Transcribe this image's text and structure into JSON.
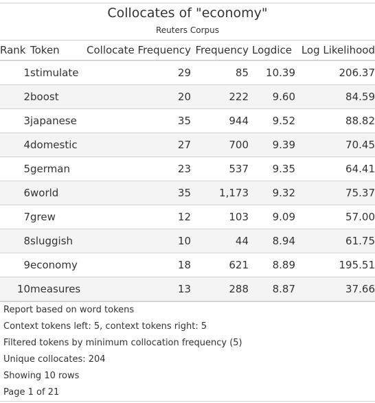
{
  "title": "Collocates of \"economy\"",
  "subtitle": "Reuters Corpus",
  "columns": [
    "Rank",
    "Token",
    "Collocate Frequency",
    "Frequency",
    "Logdice",
    "Log Likelihood"
  ],
  "rows": [
    {
      "rank": "1",
      "token": "stimulate",
      "collocate_frequency": "29",
      "frequency": "85",
      "logdice": "10.39",
      "log_likelihood": "206.37"
    },
    {
      "rank": "2",
      "token": "boost",
      "collocate_frequency": "20",
      "frequency": "222",
      "logdice": "9.60",
      "log_likelihood": "84.59"
    },
    {
      "rank": "3",
      "token": "japanese",
      "collocate_frequency": "35",
      "frequency": "944",
      "logdice": "9.52",
      "log_likelihood": "88.82"
    },
    {
      "rank": "4",
      "token": "domestic",
      "collocate_frequency": "27",
      "frequency": "700",
      "logdice": "9.39",
      "log_likelihood": "70.45"
    },
    {
      "rank": "5",
      "token": "german",
      "collocate_frequency": "23",
      "frequency": "537",
      "logdice": "9.35",
      "log_likelihood": "64.41"
    },
    {
      "rank": "6",
      "token": "world",
      "collocate_frequency": "35",
      "frequency": "1,173",
      "logdice": "9.32",
      "log_likelihood": "75.37"
    },
    {
      "rank": "7",
      "token": "grew",
      "collocate_frequency": "12",
      "frequency": "103",
      "logdice": "9.09",
      "log_likelihood": "57.00"
    },
    {
      "rank": "8",
      "token": "sluggish",
      "collocate_frequency": "10",
      "frequency": "44",
      "logdice": "8.94",
      "log_likelihood": "61.75"
    },
    {
      "rank": "9",
      "token": "economy",
      "collocate_frequency": "18",
      "frequency": "621",
      "logdice": "8.89",
      "log_likelihood": "195.51"
    },
    {
      "rank": "10",
      "token": "measures",
      "collocate_frequency": "13",
      "frequency": "288",
      "logdice": "8.87",
      "log_likelihood": "37.66"
    }
  ],
  "notes": [
    "Report based on word tokens",
    "Context tokens left: 5, context tokens right: 5",
    "Filtered tokens by minimum collocation frequency (5)",
    "Unique collocates: 204",
    "Showing 10 rows",
    "Page 1 of 21"
  ],
  "colors": {
    "text": "#333333",
    "rule": "#d3d3d3",
    "stripe": "#f4f4f4"
  }
}
